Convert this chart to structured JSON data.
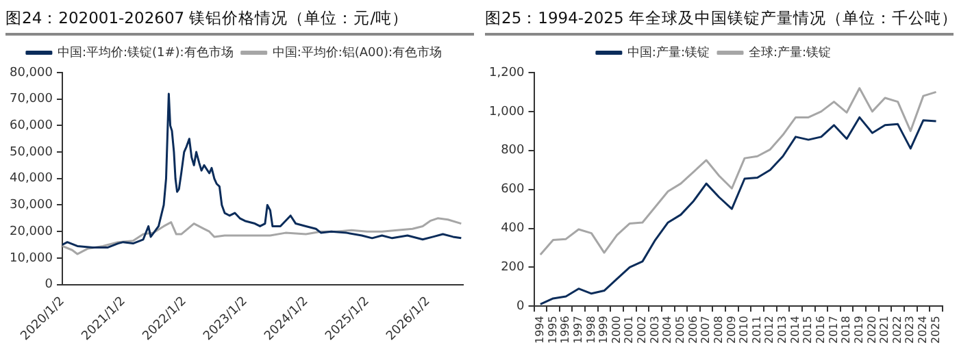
{
  "chart_data": [
    {
      "type": "line",
      "title": "图24：202001-202607 镁铝价格情况（单位：元/吨）",
      "legend": "top",
      "grid": false,
      "marker": "none",
      "xlim": [
        "2020-01-02",
        "2026-07-31"
      ],
      "xticks": [
        {
          "value": "2020-01-02",
          "label": "2020/1/2"
        },
        {
          "value": "2021-01-02",
          "label": "2021/1/2"
        },
        {
          "value": "2022-01-02",
          "label": "2022/1/2"
        },
        {
          "value": "2023-01-02",
          "label": "2023/1/2"
        },
        {
          "value": "2024-01-02",
          "label": "2024/1/2"
        },
        {
          "value": "2025-01-02",
          "label": "2025/1/2"
        },
        {
          "value": "2026-01-02",
          "label": "2026/1/2"
        }
      ],
      "ylim": [
        0,
        80000
      ],
      "yticks": [
        0,
        {
          "value": 10000,
          "label": "10,000"
        },
        {
          "value": 20000,
          "label": "20,000"
        },
        {
          "value": 30000,
          "label": "30,000"
        },
        {
          "value": 40000,
          "label": "40,000"
        },
        {
          "value": 50000,
          "label": "50,000"
        },
        {
          "value": 60000,
          "label": "60,000"
        },
        {
          "value": 70000,
          "label": "70,000"
        },
        {
          "value": 80000,
          "label": "80,000"
        }
      ],
      "series": [
        {
          "name": "中国:平均价:镁锭(1#):有色市场",
          "color": "#0b2c5a",
          "x": [
            "2020-01-02",
            "2020-02-01",
            "2020-04-01",
            "2020-07-01",
            "2020-10-01",
            "2020-12-01",
            "2021-01-01",
            "2021-03-01",
            "2021-05-01",
            "2021-06-01",
            "2021-06-15",
            "2021-08-01",
            "2021-09-01",
            "2021-09-15",
            "2021-09-25",
            "2021-10-01",
            "2021-10-10",
            "2021-10-20",
            "2021-11-01",
            "2021-11-10",
            "2021-11-20",
            "2021-12-01",
            "2021-12-15",
            "2022-01-01",
            "2022-01-15",
            "2022-02-01",
            "2022-02-15",
            "2022-03-01",
            "2022-03-15",
            "2022-04-01",
            "2022-04-15",
            "2022-05-01",
            "2022-06-01",
            "2022-06-15",
            "2022-07-01",
            "2022-07-15",
            "2022-08-01",
            "2022-08-15",
            "2022-09-01",
            "2022-10-01",
            "2022-11-01",
            "2022-12-01",
            "2023-01-01",
            "2023-03-01",
            "2023-04-01",
            "2023-05-01",
            "2023-05-15",
            "2023-06-01",
            "2023-06-15",
            "2023-08-01",
            "2023-10-01",
            "2023-11-01",
            "2024-01-01",
            "2024-03-01",
            "2024-04-01",
            "2024-06-01",
            "2024-09-01",
            "2024-12-01",
            "2025-02-01",
            "2025-04-01",
            "2025-06-01",
            "2025-09-01",
            "2025-12-01",
            "2026-02-01",
            "2026-04-01",
            "2026-06-01",
            "2026-07-20"
          ],
          "values": [
            15000,
            16000,
            14500,
            14000,
            14000,
            15500,
            16000,
            15500,
            17000,
            22000,
            18000,
            22000,
            30000,
            40000,
            60000,
            72000,
            60000,
            58000,
            50000,
            40000,
            35000,
            36000,
            42000,
            50000,
            52000,
            55000,
            48000,
            45000,
            50000,
            46000,
            43000,
            45000,
            42000,
            44000,
            40000,
            38000,
            37000,
            30000,
            27000,
            26000,
            27000,
            25000,
            24000,
            23000,
            22000,
            23000,
            30000,
            28000,
            22000,
            22000,
            26000,
            23000,
            22000,
            21000,
            19500,
            20000,
            19500,
            18500,
            17500,
            18500,
            17500,
            18500,
            17000,
            18000,
            19000,
            18000,
            17500
          ]
        },
        {
          "name": "中国:平均价:铝(A00):有色市场",
          "color": "#a6a6a6",
          "x": [
            "2020-01-02",
            "2020-03-01",
            "2020-04-01",
            "2020-06-01",
            "2020-09-01",
            "2020-12-01",
            "2021-03-01",
            "2021-05-01",
            "2021-07-01",
            "2021-09-01",
            "2021-10-15",
            "2021-11-15",
            "2021-12-15",
            "2022-03-01",
            "2022-05-01",
            "2022-06-01",
            "2022-07-01",
            "2022-09-01",
            "2023-01-01",
            "2023-06-01",
            "2023-09-01",
            "2024-01-01",
            "2024-04-01",
            "2024-07-01",
            "2024-10-01",
            "2025-01-01",
            "2025-04-01",
            "2025-07-01",
            "2025-10-01",
            "2025-12-01",
            "2026-01-15",
            "2026-03-01",
            "2026-05-01",
            "2026-07-20"
          ],
          "values": [
            14500,
            13000,
            11500,
            13500,
            14500,
            16000,
            16500,
            19000,
            19500,
            22000,
            23500,
            19000,
            19000,
            23000,
            21000,
            20000,
            18000,
            18500,
            18500,
            18500,
            19500,
            19000,
            20000,
            20000,
            20500,
            20000,
            20000,
            20500,
            21000,
            22000,
            24000,
            25000,
            24500,
            23000
          ]
        }
      ]
    },
    {
      "type": "line",
      "title": "图25：1994-2025 年全球及中国镁锭产量情况（单位：千公吨）",
      "legend": "top",
      "grid": false,
      "marker": "none",
      "categories": [
        "1994",
        "1995",
        "1996",
        "1997",
        "1998",
        "1999",
        "2000",
        "2001",
        "2002",
        "2003",
        "2004",
        "2005",
        "2006",
        "2007",
        "2008",
        "2009",
        "2010",
        "2011",
        "2012",
        "2013",
        "2014",
        "2015",
        "2016",
        "2017",
        "2018",
        "2019",
        "2020",
        "2021",
        "2022",
        "2023",
        "2024",
        "2025"
      ],
      "ylim": [
        0,
        1200
      ],
      "yticks": [
        0,
        200,
        400,
        600,
        800,
        {
          "value": 1000,
          "label": "1,000"
        },
        {
          "value": 1200,
          "label": "1,200"
        }
      ],
      "series": [
        {
          "name": "中国:产量:镁锭",
          "color": "#0b2c5a",
          "values": [
            10,
            40,
            50,
            90,
            65,
            80,
            140,
            200,
            230,
            340,
            430,
            470,
            540,
            630,
            560,
            500,
            655,
            660,
            700,
            770,
            870,
            855,
            870,
            930,
            860,
            970,
            890,
            930,
            935,
            810,
            955,
            950
          ]
        },
        {
          "name": "全球:产量:镁锭",
          "color": "#a6a6a6",
          "values": [
            265,
            340,
            345,
            395,
            375,
            275,
            365,
            425,
            430,
            510,
            590,
            630,
            690,
            750,
            670,
            605,
            760,
            770,
            805,
            880,
            970,
            970,
            1000,
            1050,
            995,
            1120,
            1000,
            1070,
            1050,
            900,
            1080,
            1100
          ]
        }
      ]
    }
  ]
}
